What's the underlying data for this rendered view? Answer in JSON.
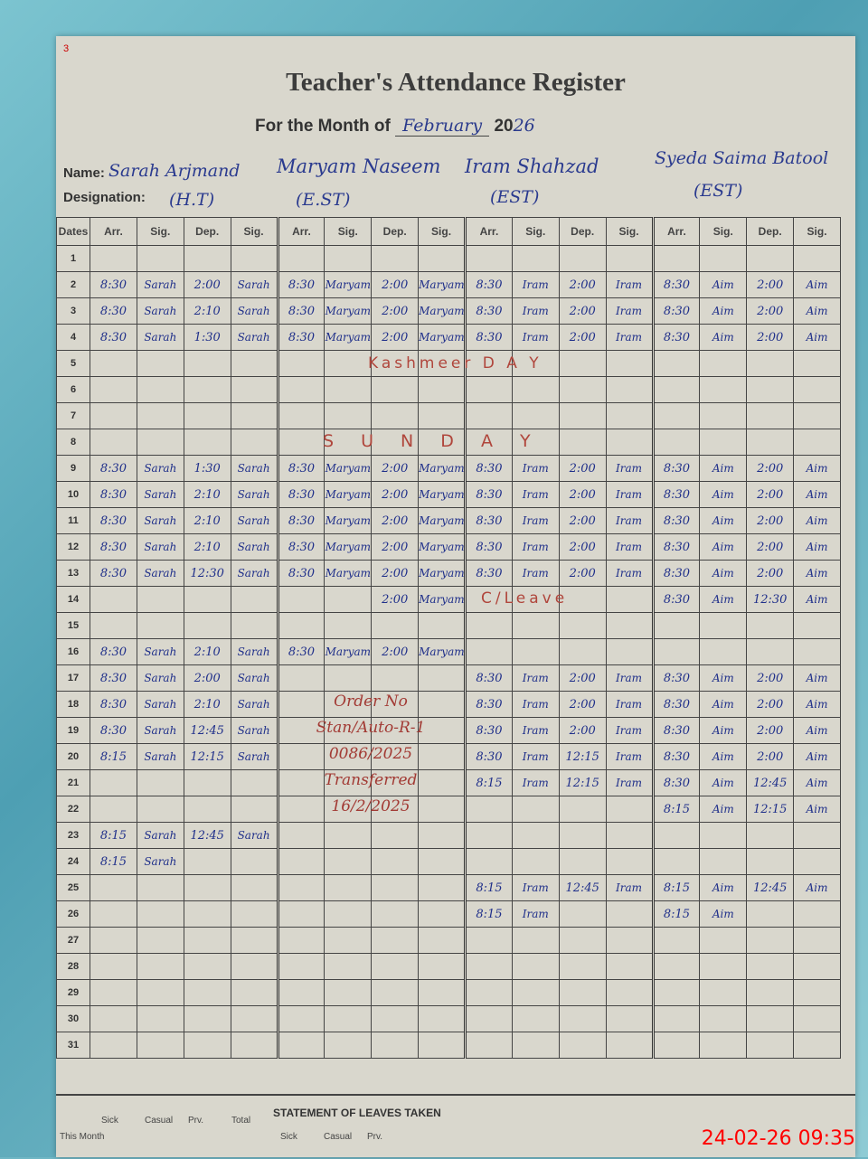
{
  "register": {
    "page_mark": "3",
    "title": "Teacher's Attendance Register",
    "month_label": "For the Month of",
    "month": "February",
    "year_prefix": "20",
    "year_suffix": "26",
    "name_label": "Name:",
    "designation_label": "Designation:",
    "dates_label": "Dates",
    "columns": [
      "Arr.",
      "Sig.",
      "Dep.",
      "Sig."
    ],
    "teachers": [
      {
        "name": "Sarah Arjmand",
        "designation": "(H.T)"
      },
      {
        "name": "Maryam Naseem",
        "designation": "(E.ST)"
      },
      {
        "name": "Iram Shahzad",
        "designation": "(EST)"
      },
      {
        "name": "Syeda Saima Batool",
        "designation": "(EST)"
      }
    ],
    "rows": [
      {
        "date": "1",
        "cells": [
          "",
          "",
          "",
          "",
          "",
          "",
          "",
          "",
          "",
          "",
          "",
          "",
          "",
          "",
          "",
          ""
        ]
      },
      {
        "date": "2",
        "cells": [
          "8:30",
          "Sarah",
          "2:00",
          "Sarah",
          "8:30",
          "Maryam",
          "2:00",
          "Maryam",
          "8:30",
          "Iram",
          "2:00",
          "Iram",
          "8:30",
          "Aim",
          "2:00",
          "Aim"
        ]
      },
      {
        "date": "3",
        "cells": [
          "8:30",
          "Sarah",
          "2:10",
          "Sarah",
          "8:30",
          "Maryam",
          "2:00",
          "Maryam",
          "8:30",
          "Iram",
          "2:00",
          "Iram",
          "8:30",
          "Aim",
          "2:00",
          "Aim"
        ]
      },
      {
        "date": "4",
        "cells": [
          "8:30",
          "Sarah",
          "1:30",
          "Sarah",
          "8:30",
          "Maryam",
          "2:00",
          "Maryam",
          "8:30",
          "Iram",
          "2:00",
          "Iram",
          "8:30",
          "Aim",
          "2:00",
          "Aim"
        ]
      },
      {
        "date": "5",
        "cells": [
          "",
          "",
          "",
          "",
          "",
          "",
          "",
          "",
          "",
          "",
          "",
          "",
          "",
          "",
          "",
          ""
        ]
      },
      {
        "date": "6",
        "cells": [
          "",
          "",
          "",
          "",
          "",
          "",
          "",
          "",
          "",
          "",
          "",
          "",
          "",
          "",
          "",
          ""
        ]
      },
      {
        "date": "7",
        "cells": [
          "",
          "",
          "",
          "",
          "",
          "",
          "",
          "",
          "",
          "",
          "",
          "",
          "",
          "",
          "",
          ""
        ]
      },
      {
        "date": "8",
        "cells": [
          "",
          "",
          "",
          "",
          "",
          "",
          "",
          "",
          "",
          "",
          "",
          "",
          "",
          "",
          "",
          ""
        ]
      },
      {
        "date": "9",
        "cells": [
          "8:30",
          "Sarah",
          "1:30",
          "Sarah",
          "8:30",
          "Maryam",
          "2:00",
          "Maryam",
          "8:30",
          "Iram",
          "2:00",
          "Iram",
          "8:30",
          "Aim",
          "2:00",
          "Aim"
        ]
      },
      {
        "date": "10",
        "cells": [
          "8:30",
          "Sarah",
          "2:10",
          "Sarah",
          "8:30",
          "Maryam",
          "2:00",
          "Maryam",
          "8:30",
          "Iram",
          "2:00",
          "Iram",
          "8:30",
          "Aim",
          "2:00",
          "Aim"
        ]
      },
      {
        "date": "11",
        "cells": [
          "8:30",
          "Sarah",
          "2:10",
          "Sarah",
          "8:30",
          "Maryam",
          "2:00",
          "Maryam",
          "8:30",
          "Iram",
          "2:00",
          "Iram",
          "8:30",
          "Aim",
          "2:00",
          "Aim"
        ]
      },
      {
        "date": "12",
        "cells": [
          "8:30",
          "Sarah",
          "2:10",
          "Sarah",
          "8:30",
          "Maryam",
          "2:00",
          "Maryam",
          "8:30",
          "Iram",
          "2:00",
          "Iram",
          "8:30",
          "Aim",
          "2:00",
          "Aim"
        ]
      },
      {
        "date": "13",
        "cells": [
          "8:30",
          "Sarah",
          "12:30",
          "Sarah",
          "8:30",
          "Maryam",
          "2:00",
          "Maryam",
          "8:30",
          "Iram",
          "2:00",
          "Iram",
          "8:30",
          "Aim",
          "2:00",
          "Aim"
        ]
      },
      {
        "date": "14",
        "cells": [
          "",
          "",
          "",
          "",
          "",
          "",
          "2:00",
          "Maryam",
          "",
          "",
          "",
          "",
          "8:30",
          "Aim",
          "12:30",
          "Aim"
        ]
      },
      {
        "date": "15",
        "cells": [
          "",
          "",
          "",
          "",
          "",
          "",
          "",
          "",
          "",
          "",
          "",
          "",
          "",
          "",
          "",
          ""
        ]
      },
      {
        "date": "16",
        "cells": [
          "8:30",
          "Sarah",
          "2:10",
          "Sarah",
          "8:30",
          "Maryam",
          "2:00",
          "Maryam",
          "",
          "",
          "",
          "",
          "",
          "",
          "",
          ""
        ]
      },
      {
        "date": "17",
        "cells": [
          "8:30",
          "Sarah",
          "2:00",
          "Sarah",
          "",
          "",
          "",
          "",
          "8:30",
          "Iram",
          "2:00",
          "Iram",
          "8:30",
          "Aim",
          "2:00",
          "Aim"
        ]
      },
      {
        "date": "18",
        "cells": [
          "8:30",
          "Sarah",
          "2:10",
          "Sarah",
          "",
          "",
          "",
          "",
          "8:30",
          "Iram",
          "2:00",
          "Iram",
          "8:30",
          "Aim",
          "2:00",
          "Aim"
        ]
      },
      {
        "date": "19",
        "cells": [
          "8:30",
          "Sarah",
          "12:45",
          "Sarah",
          "",
          "",
          "",
          "",
          "8:30",
          "Iram",
          "2:00",
          "Iram",
          "8:30",
          "Aim",
          "2:00",
          "Aim"
        ]
      },
      {
        "date": "20",
        "cells": [
          "8:15",
          "Sarah",
          "12:15",
          "Sarah",
          "",
          "",
          "",
          "",
          "8:30",
          "Iram",
          "12:15",
          "Iram",
          "8:30",
          "Aim",
          "2:00",
          "Aim"
        ]
      },
      {
        "date": "21",
        "cells": [
          "",
          "",
          "",
          "",
          "",
          "",
          "",
          "",
          "8:15",
          "Iram",
          "12:15",
          "Iram",
          "8:30",
          "Aim",
          "12:45",
          "Aim"
        ]
      },
      {
        "date": "22",
        "cells": [
          "",
          "",
          "",
          "",
          "",
          "",
          "",
          "",
          "",
          "",
          "",
          "",
          "8:15",
          "Aim",
          "12:15",
          "Aim"
        ]
      },
      {
        "date": "23",
        "cells": [
          "8:15",
          "Sarah",
          "12:45",
          "Sarah",
          "",
          "",
          "",
          "",
          "",
          "",
          "",
          "",
          "",
          "",
          "",
          ""
        ]
      },
      {
        "date": "24",
        "cells": [
          "8:15",
          "Sarah",
          "",
          "",
          "",
          "",
          "",
          "",
          "",
          "",
          "",
          "",
          "",
          "",
          "",
          ""
        ]
      },
      {
        "date": "25",
        "cells": [
          "",
          "",
          "",
          "",
          "",
          "",
          "",
          "",
          "8:15",
          "Iram",
          "12:45",
          "Iram",
          "8:15",
          "Aim",
          "12:45",
          "Aim"
        ]
      },
      {
        "date": "26",
        "cells": [
          "",
          "",
          "",
          "",
          "",
          "",
          "",
          "",
          "8:15",
          "Iram",
          "",
          "",
          "8:15",
          "Aim",
          "",
          ""
        ]
      },
      {
        "date": "27",
        "cells": [
          "",
          "",
          "",
          "",
          "",
          "",
          "",
          "",
          "",
          "",
          "",
          "",
          "",
          "",
          "",
          ""
        ]
      },
      {
        "date": "28",
        "cells": [
          "",
          "",
          "",
          "",
          "",
          "",
          "",
          "",
          "",
          "",
          "",
          "",
          "",
          "",
          "",
          ""
        ]
      },
      {
        "date": "29",
        "cells": [
          "",
          "",
          "",
          "",
          "",
          "",
          "",
          "",
          "",
          "",
          "",
          "",
          "",
          "",
          "",
          ""
        ]
      },
      {
        "date": "30",
        "cells": [
          "",
          "",
          "",
          "",
          "",
          "",
          "",
          "",
          "",
          "",
          "",
          "",
          "",
          "",
          "",
          ""
        ]
      },
      {
        "date": "31",
        "cells": [
          "",
          "",
          "",
          "",
          "",
          "",
          "",
          "",
          "",
          "",
          "",
          "",
          "",
          "",
          "",
          ""
        ]
      }
    ],
    "annotations": {
      "kashmir_day": "Kashmeer  D A Y",
      "sunday": "S U N   D   A   Y",
      "c_leave": "C/Leave",
      "order": [
        "Order No",
        "Stan/Auto-R-1",
        "0086/2025",
        "Transferred",
        "16/2/2025"
      ]
    },
    "leaves": {
      "title": "STATEMENT OF LEAVES TAKEN",
      "headers": [
        "Sick",
        "Casual",
        "Prv.",
        "Total",
        "Sick",
        "Casual",
        "Prv."
      ],
      "row_label": "This Month"
    }
  },
  "timestamp": "24-02-26  09:35",
  "colors": {
    "ink_blue": "#1f2f8a",
    "ink_red": "#b0463c",
    "stamp": "#ff0000"
  }
}
